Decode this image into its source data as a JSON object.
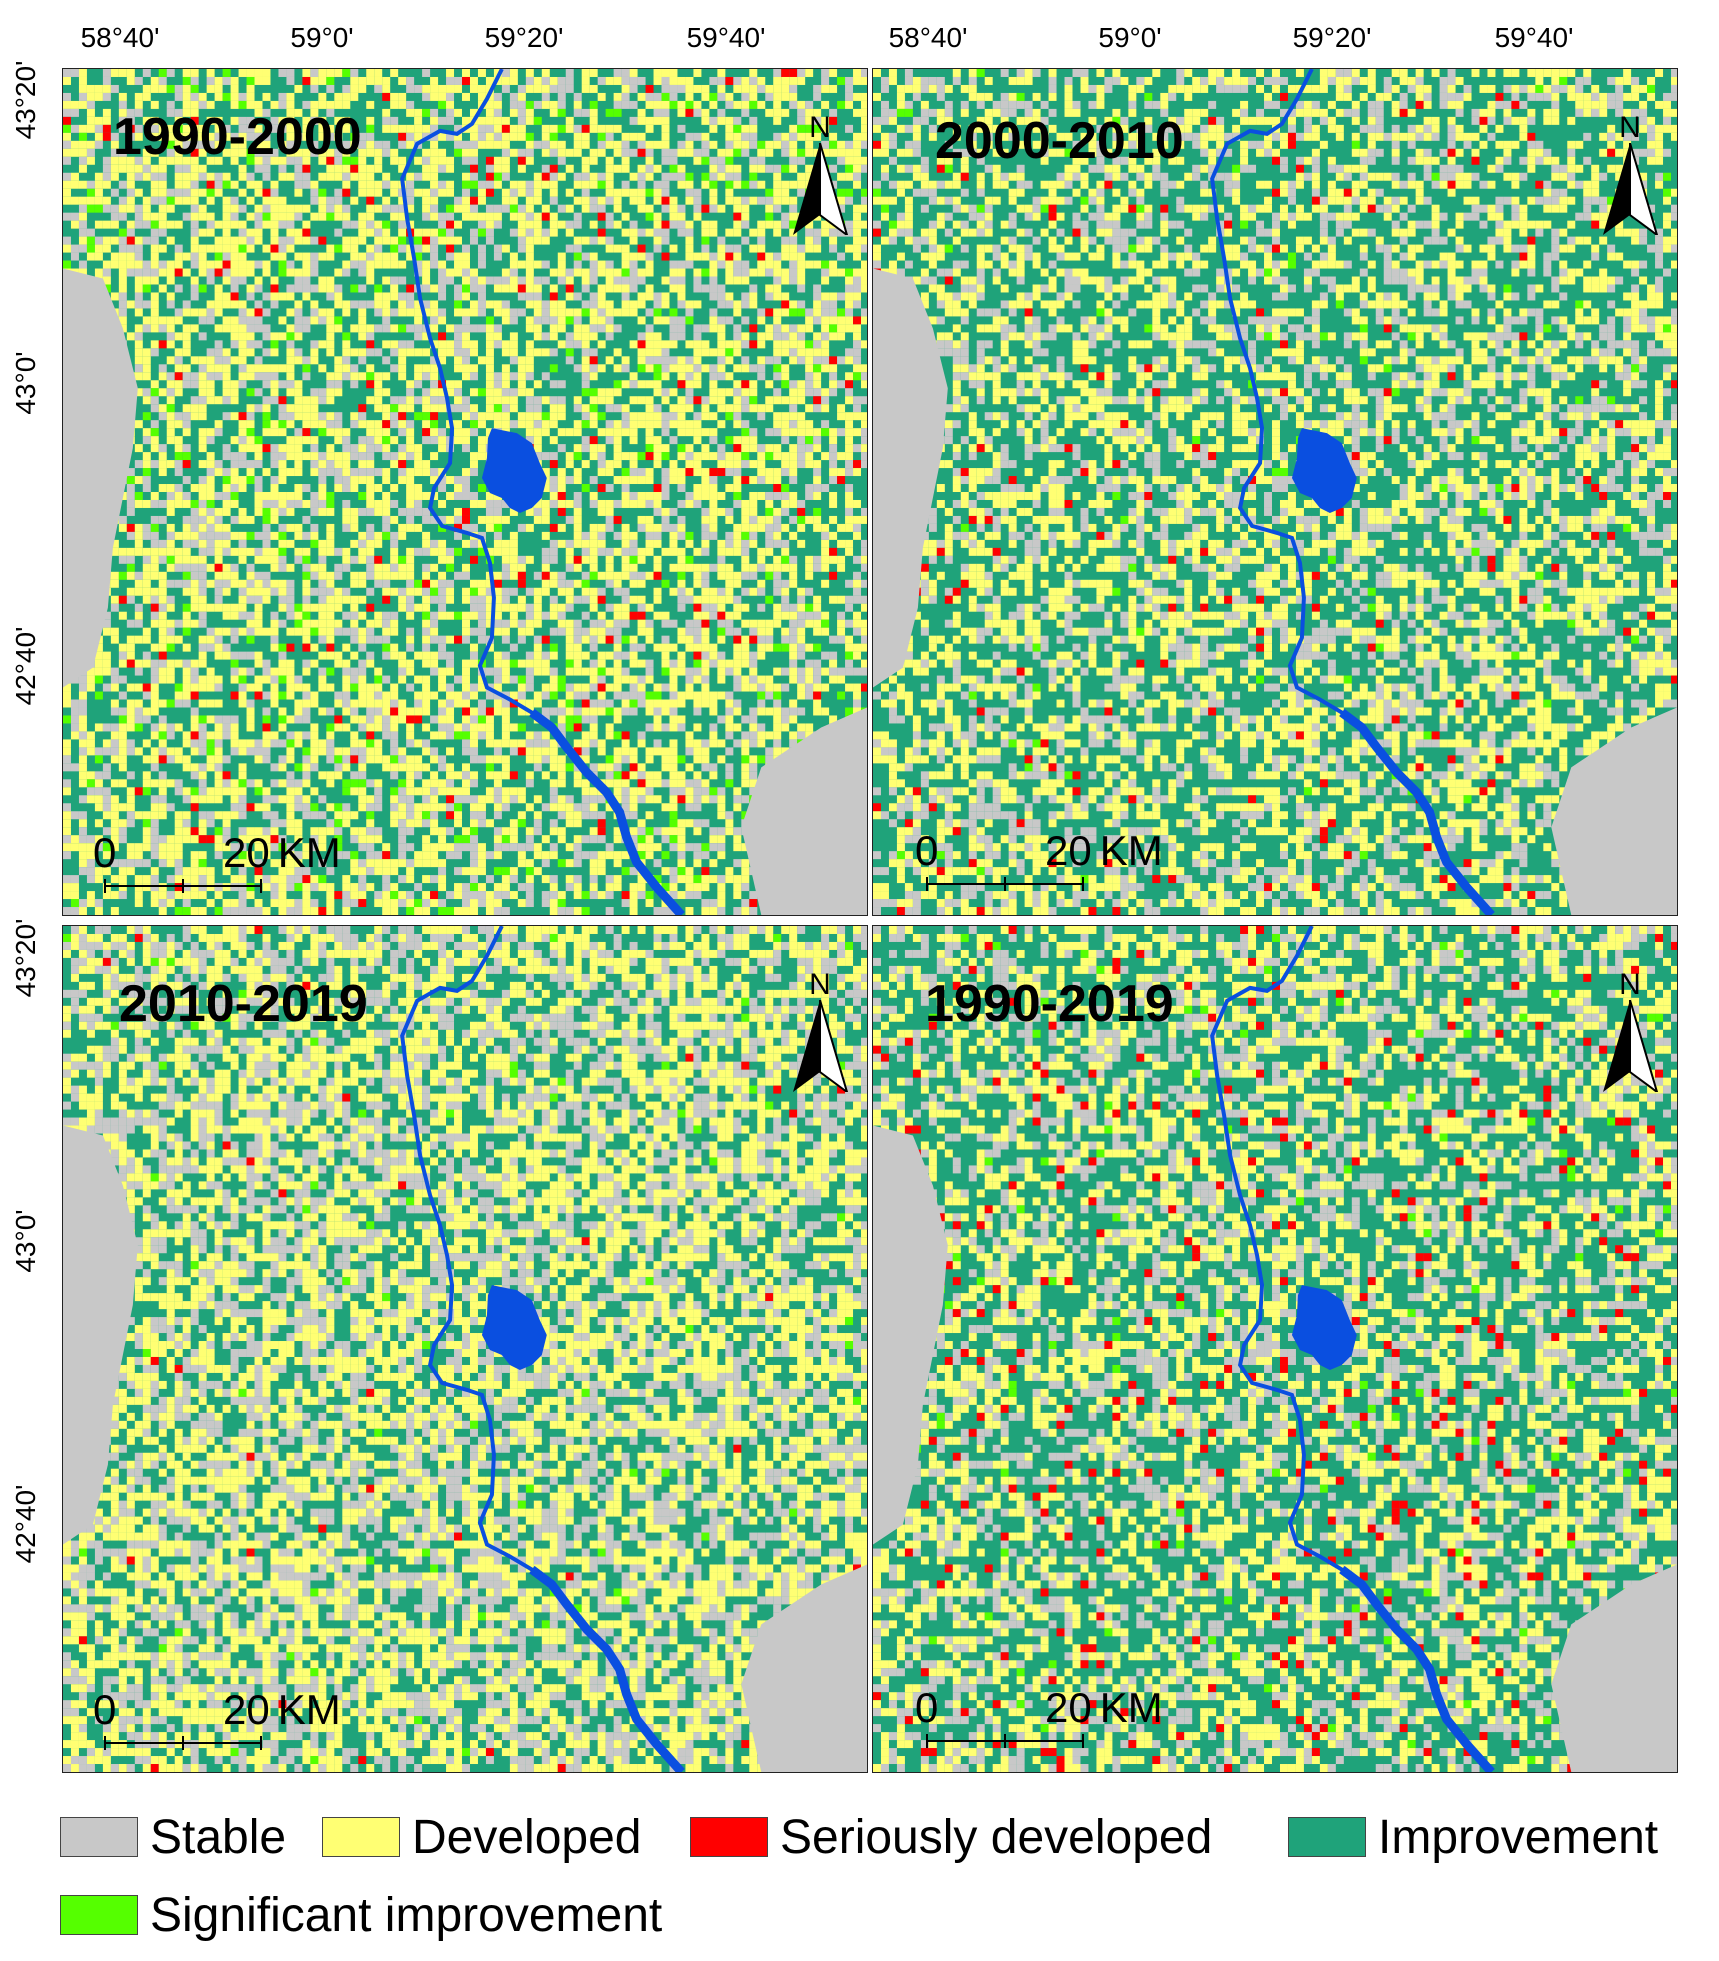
{
  "colors": {
    "stable": "#c8c8c8",
    "developed": "#ffff73",
    "seriously_developed": "#ff0000",
    "improvement": "#1fa37a",
    "significant_improvement": "#55ff00",
    "water": "#0a4fe0"
  },
  "axes": {
    "longitude_labels": [
      "58°40'",
      "59°0'",
      "59°20'",
      "59°40'"
    ],
    "latitude_labels": [
      "43°20'",
      "43°0'",
      "42°40'"
    ]
  },
  "panels": [
    {
      "period": "1990-2000",
      "north_label": "N",
      "scale": {
        "zero": "0",
        "value": "20",
        "unit": "KM"
      },
      "palette": "p1"
    },
    {
      "period": "2000-2010",
      "north_label": "N",
      "scale": {
        "zero": "0",
        "value": "20",
        "unit": "KM"
      },
      "palette": "p2"
    },
    {
      "period": "2010-2019",
      "north_label": "N",
      "scale": {
        "zero": "0",
        "value": "20",
        "unit": "KM"
      },
      "palette": "p3"
    },
    {
      "period": "1990-2019",
      "north_label": "N",
      "scale": {
        "zero": "0",
        "value": "20",
        "unit": "KM"
      },
      "palette": "p4"
    }
  ],
  "legend": [
    {
      "label": "Stable",
      "color": "#c8c8c8"
    },
    {
      "label": "Developed",
      "color": "#ffff73"
    },
    {
      "label": "Seriously developed",
      "color": "#ff0000"
    },
    {
      "label": "Improvement",
      "color": "#1fa37a"
    },
    {
      "label": "Significant improvement",
      "color": "#55ff00"
    }
  ]
}
